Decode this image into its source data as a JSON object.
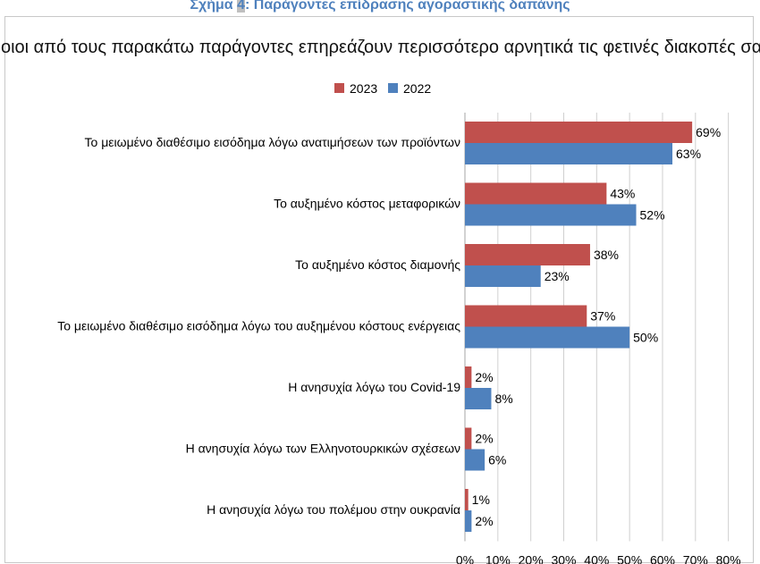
{
  "caption": {
    "prefix": "Σχήμα ",
    "number": "4",
    "text": ": Παράγοντες επίδρασης αγοραστικής δαπάνης"
  },
  "chart_data": {
    "type": "bar",
    "orientation": "horizontal",
    "title": "Ποιοι από τους παρακάτω παράγοντες επηρεάζουν περισσότερο αρνητικά τις φετινές διακοπές σας;",
    "categories": [
      "Το μειωμένο διαθέσιμο εισόδημα λόγω ανατιμήσεων των προϊόντων",
      "Το αυξημένο κόστος μεταφορικών",
      "Το αυξημένο κόστος διαμονής",
      "Το μειωμένο διαθέσιμο εισόδημα λόγω του αυξημένου κόστους ενέργειας",
      "Η ανησυχία λόγω του Covid-19",
      "Η ανησυχία λόγω των Ελληνοτουρκικών σχέσεων",
      "Η ανησυχία λόγω του πολέμου στην ουκρανία"
    ],
    "series": [
      {
        "name": "2023",
        "color": "#c0504d",
        "values": [
          69,
          43,
          38,
          37,
          2,
          2,
          1
        ],
        "labels": [
          "69%",
          "43%",
          "38%",
          "37%",
          "2%",
          "2%",
          "1%"
        ]
      },
      {
        "name": "2022",
        "color": "#4f81bd",
        "values": [
          63,
          52,
          23,
          50,
          8,
          6,
          2
        ],
        "labels": [
          "63%",
          "52%",
          "23%",
          "50%",
          "8%",
          "6%",
          "2%"
        ]
      }
    ],
    "xlim": [
      0,
      80
    ],
    "xticks": [
      0,
      10,
      20,
      30,
      40,
      50,
      60,
      70,
      80
    ],
    "xtick_labels": [
      "0%",
      "10%",
      "20%",
      "30%",
      "40%",
      "50%",
      "60%",
      "70%",
      "80%"
    ],
    "grid": true,
    "legend_position": "top"
  }
}
